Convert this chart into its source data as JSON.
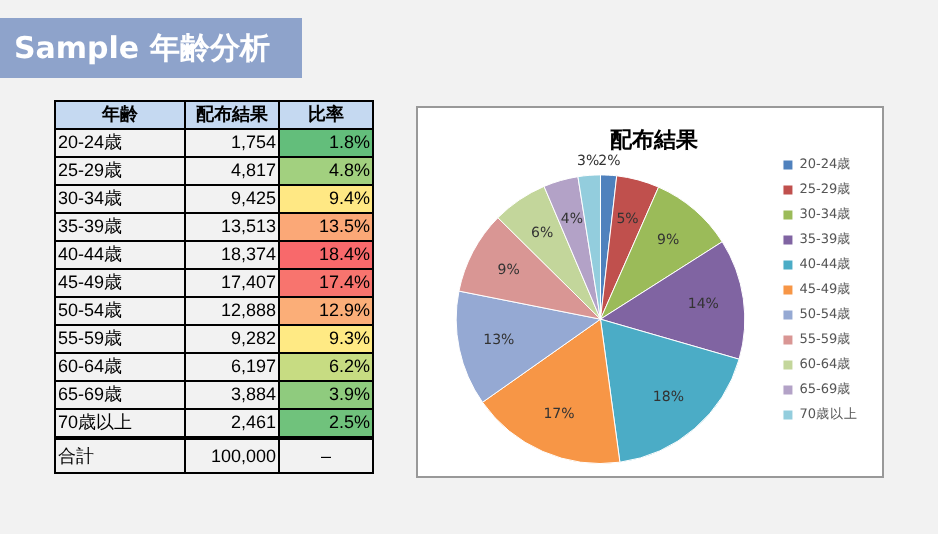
{
  "chart_data": [
    {
      "type": "other",
      "title": "Sample 年齢分析",
      "annotations": [
        "年齢",
        "配布結果",
        "比率",
        "20-24歳",
        "1,754",
        "1.8%",
        "25-29歳",
        "4,817",
        "4.8%",
        "30-34歳",
        "9,425",
        "9.4%",
        "35-39歳",
        "13,513",
        "13.5%",
        "40-44歳",
        "18,374",
        "18.4%",
        "45-49歳",
        "17,407",
        "17.4%",
        "50-54歳",
        "12,888",
        "12.9%",
        "55-59歳",
        "9,282",
        "9.3%",
        "60-64歳",
        "6,197",
        "6.2%",
        "65-69歳",
        "3,884",
        "3.9%",
        "70歳以上",
        "2,461",
        "2.5%",
        "合計",
        "100,000",
        "–"
      ],
      "colors": [
        "#63be7b",
        "#a2d07f",
        "#ffe884",
        "#fba877",
        "#f8696b",
        "#f8746e",
        "#fbae78",
        "#ffea84",
        "#c7dc82",
        "#8fcb7e",
        "#70c27c"
      ]
    },
    {
      "type": "pie",
      "title": "配布結果",
      "categories": [
        "20-24歳",
        "25-29歳",
        "30-34歳",
        "35-39歳",
        "40-44歳",
        "45-49歳",
        "50-54歳",
        "55-59歳",
        "60-64歳",
        "65-69歳",
        "70歳以上"
      ],
      "values": [
        1.8,
        4.8,
        9.4,
        13.5,
        18.4,
        17.4,
        12.9,
        9.3,
        6.2,
        3.9,
        2.5
      ],
      "colors": [
        "#4f81bd",
        "#c0504d",
        "#9bbb59",
        "#8064a2",
        "#4bacc6",
        "#f79646",
        "#95a9d3",
        "#d99694",
        "#c3d69b",
        "#b3a2c7",
        "#93cddd"
      ],
      "value_labels": [
        "2%",
        "5%",
        "9%",
        "14%",
        "18%",
        "17%",
        "13%",
        "9%",
        "6%",
        "4%",
        "3%"
      ],
      "legend": "right"
    }
  ]
}
